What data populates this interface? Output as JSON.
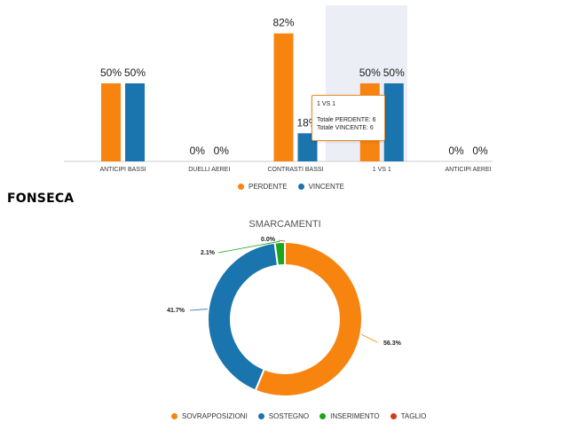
{
  "colors": {
    "perdente": "#f88410",
    "vincente": "#1a74ae",
    "inserimento": "#1ea51e",
    "taglio": "#d63a1e",
    "highlight": "#ebeff5",
    "axis": "#cccccc"
  },
  "player_name": "FONSECA",
  "bar_chart": {
    "legend": [
      {
        "label": "PERDENTE",
        "color": "#f88410"
      },
      {
        "label": "VINCENTE",
        "color": "#1a74ae"
      }
    ],
    "tooltip": {
      "title": "1 VS 1",
      "line1": "Totale PERDENTE: 6",
      "line2": "Totale VINCENTE: 6"
    }
  },
  "donut_chart": {
    "legend": [
      {
        "label": "SOVRAPPOSIZIONI",
        "color": "#f88410"
      },
      {
        "label": "SOSTEGNO",
        "color": "#1a74ae"
      },
      {
        "label": "INSERIMENTO",
        "color": "#1ea51e"
      },
      {
        "label": "TAGLIO",
        "color": "#d63a1e"
      }
    ]
  },
  "chart_data": [
    {
      "type": "bar",
      "categories": [
        "ANTICIPI BASSI",
        "DUELLI AEREI",
        "CONTRASTI BASSI",
        "1 VS 1",
        "ANTICIPI AEREI"
      ],
      "series": [
        {
          "name": "PERDENTE",
          "values": [
            50,
            0,
            82,
            50,
            0
          ],
          "labels": [
            "50%",
            "0%",
            "82%",
            "50%",
            "0%"
          ]
        },
        {
          "name": "VINCENTE",
          "values": [
            50,
            0,
            18,
            50,
            0
          ],
          "labels": [
            "50%",
            "0%",
            "18%",
            "50%",
            "0%"
          ]
        }
      ],
      "highlighted_category": "1 VS 1",
      "ylim": [
        0,
        100
      ],
      "grid": false
    },
    {
      "type": "pie",
      "title": "SMARCAMENTI",
      "labels": [
        "SOVRAPPOSIZIONI",
        "SOSTEGNO",
        "INSERIMENTO",
        "TAGLIO"
      ],
      "values": [
        56.3,
        41.7,
        2.1,
        0.0
      ],
      "value_labels": [
        "56.3%",
        "41.7%",
        "2.1%",
        "0.0%"
      ],
      "donut": true
    }
  ]
}
